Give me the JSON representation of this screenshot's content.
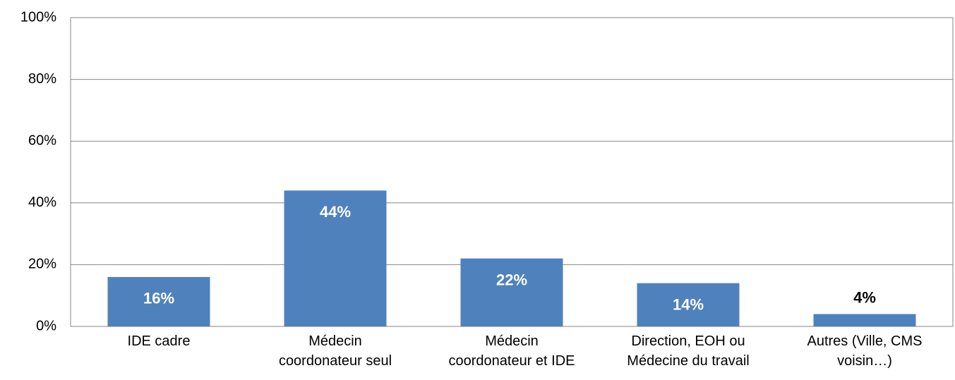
{
  "chart_data": {
    "type": "bar",
    "categories": [
      "IDE cadre",
      "Médecin\ncoordonateur seul",
      "Médecin\ncoordonateur et IDE",
      "Direction, EOH ou\nMédecine du travail",
      "Autres (Ville, CMS\nvoisin…)"
    ],
    "values": [
      16,
      44,
      22,
      14,
      4
    ],
    "value_labels": [
      "16%",
      "44%",
      "22%",
      "14%",
      "4%"
    ],
    "color": "#4f81bd",
    "ylim": [
      0,
      100
    ],
    "yticks": [
      {
        "value": 0,
        "label": "0%"
      },
      {
        "value": 20,
        "label": "20%"
      },
      {
        "value": 40,
        "label": "40%"
      },
      {
        "value": 60,
        "label": "60%"
      },
      {
        "value": 80,
        "label": "80%"
      },
      {
        "value": 100,
        "label": "100%"
      }
    ],
    "grid": true
  }
}
